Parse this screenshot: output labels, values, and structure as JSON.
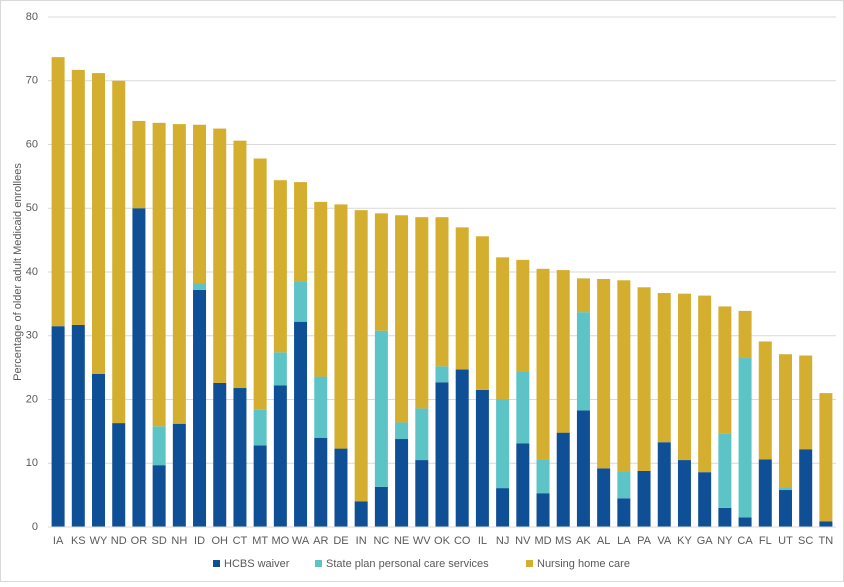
{
  "chart_data": {
    "type": "stacked-bar",
    "ylabel": "Percentage of older adult Medicaid enrollees",
    "categories": [
      "IA",
      "KS",
      "WY",
      "ND",
      "OR",
      "SD",
      "NH",
      "ID",
      "OH",
      "CT",
      "MT",
      "MO",
      "WA",
      "AR",
      "DE",
      "IN",
      "NC",
      "NE",
      "WV",
      "OK",
      "CO",
      "IL",
      "NJ",
      "NV",
      "MD",
      "MS",
      "AK",
      "AL",
      "LA",
      "PA",
      "VA",
      "KY",
      "GA",
      "NY",
      "CA",
      "FL",
      "UT",
      "SC",
      "TN"
    ],
    "series": [
      {
        "name": "HCBS waiver",
        "color": "#0e4f96",
        "values": [
          31.5,
          31.7,
          24,
          16.3,
          50,
          9.7,
          16.2,
          37.2,
          22.6,
          21.8,
          12.8,
          22.2,
          32.2,
          14,
          12.3,
          4,
          6.3,
          13.8,
          10.5,
          22.7,
          24.7,
          21.5,
          6.1,
          13.1,
          5.3,
          14.8,
          18.3,
          9.2,
          4.5,
          8.8,
          13.3,
          10.5,
          8.6,
          3,
          1.5,
          10.6,
          5.8,
          12.2,
          0.9
        ]
      },
      {
        "name": "State plan personal care services",
        "color": "#5cc3c6",
        "values": [
          0,
          0,
          0,
          0,
          0,
          6.1,
          0,
          1,
          0,
          0,
          5.6,
          5.2,
          6.3,
          9.6,
          0,
          0,
          24.5,
          2.6,
          8.1,
          2.5,
          0,
          0,
          13.9,
          11.3,
          5.3,
          0,
          15.4,
          0,
          4.2,
          0,
          0,
          0,
          0,
          11.7,
          25,
          0,
          0.4,
          0,
          0
        ]
      },
      {
        "name": "Nursing home care",
        "color": "#d4ae2f",
        "values": [
          42.2,
          40,
          47.2,
          53.7,
          13.7,
          47.6,
          47,
          24.9,
          39.9,
          38.8,
          39.4,
          27,
          15.6,
          27.4,
          38.3,
          45.7,
          18.4,
          32.5,
          30,
          23.4,
          22.3,
          24.1,
          22.3,
          17.5,
          29.9,
          25.5,
          5.3,
          29.7,
          30,
          28.8,
          23.4,
          26.1,
          27.7,
          19.9,
          7.4,
          18.5,
          20.9,
          14.7,
          20.1
        ]
      }
    ],
    "ylim": [
      0,
      80
    ],
    "yticks": [
      0,
      10,
      20,
      30,
      40,
      50,
      60,
      70,
      80
    ],
    "grid": true
  }
}
